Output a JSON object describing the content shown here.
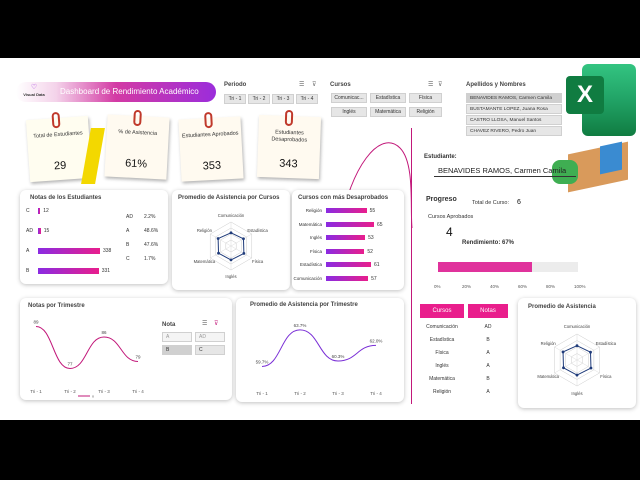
{
  "header": {
    "logo_text": "Visual Data",
    "title": "Dashboard de Rendimiento Académico"
  },
  "periodo": {
    "title": "Periodo",
    "options": [
      "Tri - 1",
      "Tri - 2",
      "Tri - 3",
      "Tri - 4"
    ]
  },
  "cursos": {
    "title": "Cursos",
    "options": [
      "Comunicac...",
      "Estadística",
      "Física",
      "Inglés",
      "Matemática",
      "Religión"
    ]
  },
  "apellidos": {
    "title": "Apellidos y Nombres",
    "options": [
      "BENAVIDES RAMOS, Carmen Camila",
      "BUSTAMANTE LOPEZ, Juana Rosa",
      "CASTRO LLOSA, Manuel Santos",
      "CHAVEZ RIVERO, Pedro Juan"
    ]
  },
  "kpis": [
    {
      "label": "Total de Estudiantes",
      "value": "29"
    },
    {
      "label": "% de Asistencia",
      "value": "61%"
    },
    {
      "label": "Estudiantes Aprobados",
      "value": "353"
    },
    {
      "label": "Estudiantes Desaprobados",
      "value": "343"
    }
  ],
  "notas": {
    "title": "Notas de los Estudiantes",
    "bars": [
      {
        "label": "C",
        "value": 12
      },
      {
        "label": "AD",
        "value": 15
      },
      {
        "label": "A",
        "value": 338
      },
      {
        "label": "B",
        "value": 331
      }
    ],
    "pct": [
      {
        "label": "AD",
        "value": "2.2%"
      },
      {
        "label": "A",
        "value": "48.6%"
      },
      {
        "label": "B",
        "value": "47.6%"
      },
      {
        "label": "C",
        "value": "1.7%"
      }
    ]
  },
  "radar1": {
    "title": "Promedio de Asistencia por Cursos",
    "axes": [
      "Comunicación",
      "Estadística",
      "Física",
      "Inglés",
      "Matemática",
      "Religión"
    ]
  },
  "desaprobados": {
    "title": "Cursos con más Desaprobados",
    "bars": [
      {
        "label": "Religión",
        "value": 55
      },
      {
        "label": "Matemática",
        "value": 65
      },
      {
        "label": "Inglés",
        "value": 53
      },
      {
        "label": "Física",
        "value": 52
      },
      {
        "label": "Estadística",
        "value": 61
      },
      {
        "label": "Comunicación",
        "value": 57
      }
    ]
  },
  "trimestre": {
    "title": "Notas por Trimestre",
    "labels": [
      "Tri - 1",
      "Tri - 2",
      "Tri - 3",
      "Tri - 4"
    ],
    "values": [
      89,
      77,
      86,
      79
    ],
    "legend": "x"
  },
  "nota_slicer": {
    "title": "Nota",
    "options": [
      "A",
      "AD",
      "B",
      "C"
    ]
  },
  "asistencia_tri": {
    "title": "Promedio de Asistencia por Trimestre",
    "labels": [
      "Tri - 1",
      "Tri - 2",
      "Tri - 3",
      "Tri - 4"
    ],
    "values": [
      "59.7%",
      "63.7%",
      "60.3%",
      "62.0%"
    ]
  },
  "estudiante": {
    "label": "Estudiante:",
    "value": "BENAVIDES RAMOS, Carmen Camila"
  },
  "progreso": {
    "title": "Progreso",
    "total_label": "Total de Curso:",
    "total_value": "6",
    "aprobados_label": "Cursos Aprobados",
    "aprobados_value": "4",
    "rendimiento": "Rendimiento: 67%",
    "progress_fraction": 0.67,
    "ticks": [
      "0%",
      "20%",
      "40%",
      "60%",
      "80%",
      "100%"
    ]
  },
  "tabla": {
    "headers": [
      "Cursos",
      "Notas"
    ],
    "rows": [
      [
        "Comunicación",
        "AD"
      ],
      [
        "Estadística",
        "B"
      ],
      [
        "Física",
        "A"
      ],
      [
        "Inglés",
        "A"
      ],
      [
        "Matemática",
        "B"
      ],
      [
        "Religión",
        "A"
      ]
    ]
  },
  "radar2": {
    "title": "Promedio de Asistencia",
    "axes": [
      "Comunicación",
      "Estadística",
      "Física",
      "Inglés",
      "Matemática",
      "Religión"
    ]
  },
  "excel_icon": "excel-icon",
  "colors": {
    "accent": "#e91e8c",
    "purple": "#8a2be2"
  }
}
